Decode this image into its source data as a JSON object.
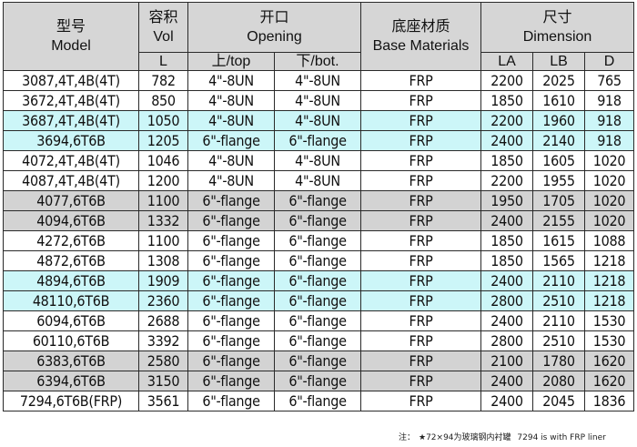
{
  "header": {
    "model_cn": "型号",
    "model_en": "Model",
    "vol_cn": "容积",
    "vol_en": "Vol",
    "vol_unit": "L",
    "opening_cn": "开口",
    "opening_en": "Opening",
    "top_label": "上/top",
    "bot_label": "下/bot.",
    "base_cn": "底座材质",
    "base_en": "Base Materials",
    "dim_cn": "尺寸",
    "dim_en": "Dimension",
    "la": "LA",
    "lb": "LB",
    "d": "D"
  },
  "rows": [
    {
      "model": "3087,4T,4B(4T)",
      "vol": "782",
      "top": "4\"-8UN",
      "bot": "4\"-8UN",
      "base": "FRP",
      "la": "2200",
      "lb": "2025",
      "d": "765",
      "color": "white"
    },
    {
      "model": "3672,4T,4B(4T)",
      "vol": "850",
      "top": "4\"-8UN",
      "bot": "4\"-8UN",
      "base": "FRP",
      "la": "1850",
      "lb": "1610",
      "d": "918",
      "color": "white"
    },
    {
      "model": "3687,4T,4B(4T)",
      "vol": "1050",
      "top": "4\"-8UN",
      "bot": "4\"-8UN",
      "base": "FRP",
      "la": "2200",
      "lb": "1960",
      "d": "918",
      "color": "cyan"
    },
    {
      "model": "3694,6T6B",
      "vol": "1205",
      "top": "6\"-flange",
      "bot": "6\"-flange",
      "base": "FRP",
      "la": "2400",
      "lb": "2140",
      "d": "918",
      "color": "cyan"
    },
    {
      "model": "4072,4T,4B(4T)",
      "vol": "1046",
      "top": "4\"-8UN",
      "bot": "4\"-8UN",
      "base": "FRP",
      "la": "1850",
      "lb": "1605",
      "d": "1020",
      "color": "white"
    },
    {
      "model": "4087,4T,4B(4T)",
      "vol": "1200",
      "top": "4\"-8UN",
      "bot": "4\"-8UN",
      "base": "FRP",
      "la": "2200",
      "lb": "1955",
      "d": "1020",
      "color": "white"
    },
    {
      "model": "4077,6T6B",
      "vol": "1100",
      "top": "6\"-flange",
      "bot": "6\"-flange",
      "base": "FRP",
      "la": "1950",
      "lb": "1705",
      "d": "1020",
      "color": "gray"
    },
    {
      "model": "4094,6T6B",
      "vol": "1332",
      "top": "6\"-flange",
      "bot": "6\"-flange",
      "base": "FRP",
      "la": "2400",
      "lb": "2155",
      "d": "1020",
      "color": "gray"
    },
    {
      "model": "4272,6T6B",
      "vol": "1100",
      "top": "6\"-flange",
      "bot": "6\"-flange",
      "base": "FRP",
      "la": "1850",
      "lb": "1615",
      "d": "1088",
      "color": "white"
    },
    {
      "model": "4872,6T6B",
      "vol": "1308",
      "top": "6\"-flange",
      "bot": "6\"-flange",
      "base": "FRP",
      "la": "1850",
      "lb": "1565",
      "d": "1218",
      "color": "white"
    },
    {
      "model": "4894,6T6B",
      "vol": "1909",
      "top": "6\"-flange",
      "bot": "6\"-flange",
      "base": "FRP",
      "la": "2400",
      "lb": "2110",
      "d": "1218",
      "color": "cyan"
    },
    {
      "model": "48110,6T6B",
      "vol": "2360",
      "top": "6\"-flange",
      "bot": "6\"-flange",
      "base": "FRP",
      "la": "2800",
      "lb": "2510",
      "d": "1218",
      "color": "cyan"
    },
    {
      "model": "6094,6T6B",
      "vol": "2688",
      "top": "6\"-flange",
      "bot": "6\"-flange",
      "base": "FRP",
      "la": "2400",
      "lb": "2110",
      "d": "1530",
      "color": "white"
    },
    {
      "model": "60110,6T6B",
      "vol": "3392",
      "top": "6\"-flange",
      "bot": "6\"-flange",
      "base": "FRP",
      "la": "2800",
      "lb": "2510",
      "d": "1530",
      "color": "white"
    },
    {
      "model": "6383,6T6B",
      "vol": "2580",
      "top": "6\"-flange",
      "bot": "6\"-flange",
      "base": "FRP",
      "la": "2100",
      "lb": "1780",
      "d": "1620",
      "color": "gray"
    },
    {
      "model": "6394,6T6B",
      "vol": "3150",
      "top": "6\"-flange",
      "bot": "6\"-flange",
      "base": "FRP",
      "la": "2400",
      "lb": "2080",
      "d": "1620",
      "color": "gray"
    },
    {
      "model": "7294,6T6B(FRP)",
      "vol": "3561",
      "top": "6\"-flange",
      "bot": "6\"-flange",
      "base": "FRP",
      "la": "2400",
      "lb": "2045",
      "d": "1836",
      "color": "white"
    }
  ],
  "footnote": {
    "label": "注：",
    "cn": "★72×94为玻璃钢内衬罐",
    "en": "7294 is with FRP liner"
  }
}
